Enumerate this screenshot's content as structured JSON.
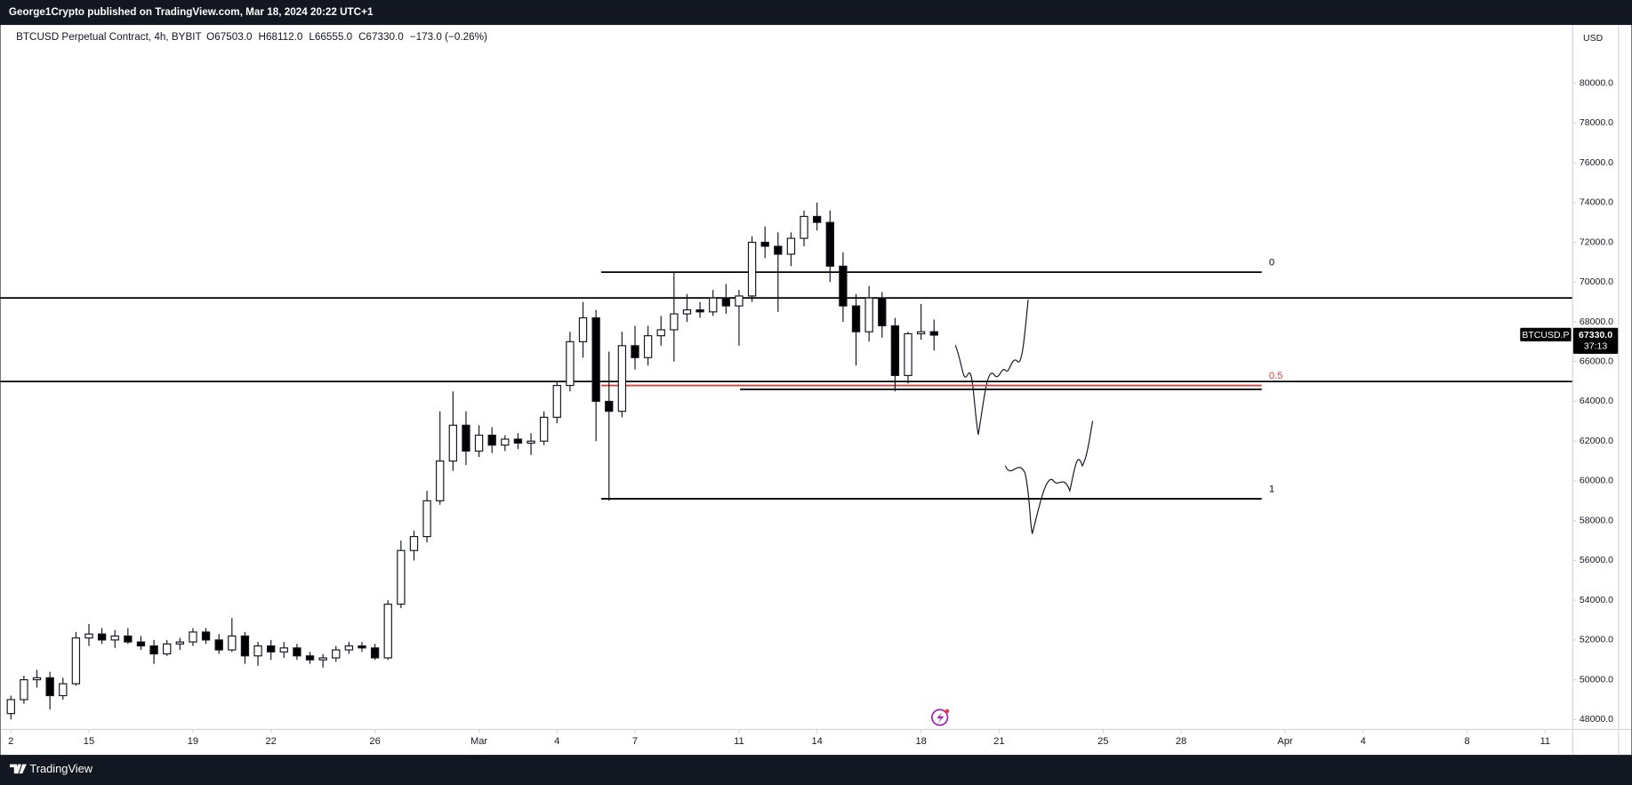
{
  "chart_data": {
    "type": "candlestick",
    "publisher": "George1Crypto published on TradingView.com, Mar 18, 2024 20:22 UTC+1",
    "title": "BTCUSD Perpetual Contract, 4h, BYBIT",
    "ohlc": [
      "O67503.0",
      "H68112.0",
      "L66555.0",
      "C67330.0",
      "−173.0 (−0.26%)"
    ],
    "currency": "USD",
    "symbol_tag": "BTCUSD.P",
    "last_price_label": "67330.0",
    "countdown": "37:13",
    "brand": "TradingView",
    "up_color": "#ffffff",
    "down_color": "#000000",
    "x": [
      0,
      0.5,
      1,
      1.5,
      2,
      2.5,
      3,
      3.5,
      4,
      4.5,
      5,
      5.5,
      6,
      6.5,
      7,
      7.5,
      8,
      8.5,
      9,
      9.5,
      10,
      10.5,
      11,
      11.5,
      12,
      12.5,
      13,
      13.5,
      14,
      14.5,
      15,
      15.5,
      16,
      16.5,
      17,
      17.5,
      18,
      18.5,
      19,
      19.5,
      20,
      20.5,
      21,
      21.5,
      22,
      22.5,
      23,
      23.5,
      24,
      24.5,
      25,
      25.5,
      26,
      26.5,
      27,
      27.5,
      28,
      28.5,
      29,
      29.5,
      30,
      30.5,
      31,
      31.5,
      32,
      32.5,
      33,
      33.5,
      34,
      34.5,
      35,
      35.5
    ],
    "candles": [
      [
        48300,
        49200,
        48000,
        49000
      ],
      [
        49000,
        50200,
        48800,
        50000
      ],
      [
        50000,
        50500,
        49600,
        50100
      ],
      [
        50100,
        50400,
        48500,
        49200
      ],
      [
        49200,
        50100,
        49000,
        49800
      ],
      [
        49800,
        52400,
        49700,
        52100
      ],
      [
        52100,
        52800,
        51700,
        52300
      ],
      [
        52300,
        52600,
        51800,
        52000
      ],
      [
        52000,
        52500,
        51600,
        52200
      ],
      [
        52200,
        52600,
        51800,
        51900
      ],
      [
        51900,
        52200,
        51500,
        51700
      ],
      [
        51700,
        52000,
        50800,
        51300
      ],
      [
        51300,
        52000,
        51200,
        51800
      ],
      [
        51800,
        52100,
        51500,
        51900
      ],
      [
        51900,
        52600,
        51700,
        52400
      ],
      [
        52400,
        52600,
        51800,
        52000
      ],
      [
        52000,
        52300,
        51300,
        51500
      ],
      [
        51500,
        53100,
        51400,
        52200
      ],
      [
        52200,
        52400,
        50800,
        51200
      ],
      [
        51200,
        51900,
        50700,
        51700
      ],
      [
        51700,
        52000,
        51000,
        51400
      ],
      [
        51400,
        51900,
        51100,
        51600
      ],
      [
        51600,
        51800,
        51000,
        51200
      ],
      [
        51200,
        51400,
        50800,
        51000
      ],
      [
        51000,
        51300,
        50600,
        51100
      ],
      [
        51100,
        51700,
        50900,
        51500
      ],
      [
        51500,
        51900,
        51300,
        51700
      ],
      [
        51700,
        51900,
        51400,
        51600
      ],
      [
        51600,
        51800,
        51000,
        51100
      ],
      [
        51100,
        54000,
        51000,
        53800
      ],
      [
        53800,
        57000,
        53600,
        56500
      ],
      [
        56500,
        57500,
        56000,
        57200
      ],
      [
        57200,
        59500,
        56900,
        59000
      ],
      [
        59000,
        63500,
        58800,
        61000
      ],
      [
        61000,
        64500,
        60500,
        62800
      ],
      [
        62800,
        63500,
        60800,
        61500
      ],
      [
        61500,
        62800,
        61200,
        62300
      ],
      [
        62300,
        62700,
        61400,
        61800
      ],
      [
        61800,
        62300,
        61500,
        62100
      ],
      [
        62100,
        62400,
        61600,
        61900
      ],
      [
        61900,
        62400,
        61300,
        62000
      ],
      [
        62000,
        63500,
        61800,
        63200
      ],
      [
        63200,
        65000,
        62900,
        64800
      ],
      [
        64800,
        67500,
        64500,
        67000
      ],
      [
        67000,
        69000,
        66200,
        68200
      ],
      [
        68200,
        68600,
        62000,
        64000
      ],
      [
        64000,
        66500,
        59000,
        63500
      ],
      [
        63500,
        67500,
        63200,
        66800
      ],
      [
        66800,
        67800,
        65600,
        66200
      ],
      [
        66200,
        67800,
        65800,
        67300
      ],
      [
        67300,
        68300,
        66800,
        67600
      ],
      [
        67600,
        70500,
        66000,
        68400
      ],
      [
        68400,
        69400,
        68000,
        68600
      ],
      [
        68600,
        69000,
        68200,
        68500
      ],
      [
        68500,
        69600,
        68300,
        69200
      ],
      [
        69200,
        69900,
        68400,
        68800
      ],
      [
        68800,
        69600,
        66800,
        69300
      ],
      [
        69300,
        72300,
        69000,
        72000
      ],
      [
        72000,
        72800,
        71200,
        71800
      ],
      [
        71800,
        72500,
        68500,
        71400
      ],
      [
        71400,
        72500,
        70800,
        72200
      ],
      [
        72200,
        73600,
        71800,
        73300
      ],
      [
        73300,
        74000,
        72600,
        73000
      ],
      [
        73000,
        73600,
        70000,
        70800
      ],
      [
        70800,
        71500,
        68000,
        68800
      ],
      [
        68800,
        69400,
        65800,
        67500
      ],
      [
        67500,
        69800,
        67000,
        69200
      ],
      [
        69200,
        69500,
        67200,
        67800
      ],
      [
        67800,
        68200,
        64500,
        65300
      ],
      [
        65300,
        67500,
        64900,
        67400
      ],
      [
        67400,
        68900,
        67100,
        67503
      ],
      [
        67503,
        68112,
        66555,
        67330
      ]
    ],
    "hlines": [
      {
        "value": 69200,
        "color": "#000000"
      },
      {
        "value": 65000,
        "color": "#000000"
      }
    ],
    "segments": [
      {
        "value": 64600,
        "x": [
          28.04,
          48.1
        ],
        "color": "#000000"
      }
    ],
    "fib": {
      "x": [
        22.7,
        48.1
      ],
      "levels": [
        {
          "label": "0",
          "value": 70500,
          "color": "#000000"
        },
        {
          "label": "0.5",
          "value": 64800,
          "color": "#e53935"
        },
        {
          "label": "1",
          "value": 59100,
          "color": "#000000"
        }
      ]
    },
    "xlim": [
      -0.04,
      60.04
    ],
    "xticks": [
      {
        "value": 0,
        "label": "2"
      },
      {
        "value": 3,
        "label": "15"
      },
      {
        "value": 7,
        "label": "19"
      },
      {
        "value": 10,
        "label": "22"
      },
      {
        "value": 14,
        "label": "26"
      },
      {
        "value": 18,
        "label": "Mar"
      },
      {
        "value": 21,
        "label": "4"
      },
      {
        "value": 24,
        "label": "7"
      },
      {
        "value": 28,
        "label": "11"
      },
      {
        "value": 31,
        "label": "14"
      },
      {
        "value": 35,
        "label": "18"
      },
      {
        "value": 38,
        "label": "21"
      },
      {
        "value": 42,
        "label": "25"
      },
      {
        "value": 45,
        "label": "28"
      },
      {
        "value": 49,
        "label": "Apr"
      },
      {
        "value": 52,
        "label": "4"
      },
      {
        "value": 56,
        "label": "8"
      },
      {
        "value": 59,
        "label": "11"
      }
    ],
    "ylim": [
      47530,
      82930
    ],
    "yticks": [
      {
        "value": 48000,
        "label": "48000.0"
      },
      {
        "value": 50000,
        "label": "50000.0"
      },
      {
        "value": 52000,
        "label": "52000.0"
      },
      {
        "value": 54000,
        "label": "54000.0"
      },
      {
        "value": 56000,
        "label": "56000.0"
      },
      {
        "value": 58000,
        "label": "58000.0"
      },
      {
        "value": 60000,
        "label": "60000.0"
      },
      {
        "value": 62000,
        "label": "62000.0"
      },
      {
        "value": 64000,
        "label": "64000.0"
      },
      {
        "value": 66000,
        "label": "66000.0"
      },
      {
        "value": 68000,
        "label": "68000.0"
      },
      {
        "value": 70000,
        "label": "70000.0"
      },
      {
        "value": 72000,
        "label": "72000.0"
      },
      {
        "value": 74000,
        "label": "74000.0"
      },
      {
        "value": 76000,
        "label": "76000.0"
      },
      {
        "value": 78000,
        "label": "78000.0"
      },
      {
        "value": 80000,
        "label": "80000.0"
      }
    ]
  }
}
